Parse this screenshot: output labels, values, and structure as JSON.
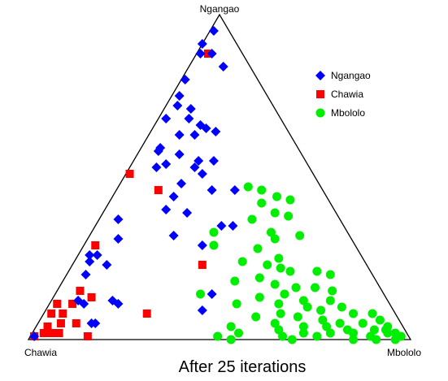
{
  "chart_data": {
    "type": "scatter",
    "subtype": "ternary",
    "caption": "After 25 iterations",
    "vertices": {
      "top": "Ngangao",
      "left": "Chawia",
      "right": "Mbololo"
    },
    "legend": {
      "position": "top-right"
    },
    "series": [
      {
        "name": "Ngangao",
        "color": "#0000ff",
        "marker": "diamond",
        "points": [
          [
            0.95,
            0.01
          ],
          [
            0.91,
            0.0
          ],
          [
            0.88,
            0.01
          ],
          [
            0.88,
            0.04
          ],
          [
            0.84,
            0.09
          ],
          [
            0.8,
            0.01
          ],
          [
            0.75,
            0.02
          ],
          [
            0.72,
            0.03
          ],
          [
            0.71,
            0.07
          ],
          [
            0.68,
            0.02
          ],
          [
            0.68,
            0.08
          ],
          [
            0.66,
            0.12
          ],
          [
            0.65,
            0.14
          ],
          [
            0.64,
            0.17
          ],
          [
            0.63,
            0.08
          ],
          [
            0.63,
            0.12
          ],
          [
            0.59,
            0.05
          ],
          [
            0.58,
            0.05
          ],
          [
            0.57,
            0.11
          ],
          [
            0.55,
            0.17
          ],
          [
            0.55,
            0.21
          ],
          [
            0.54,
            0.09
          ],
          [
            0.53,
            0.07
          ],
          [
            0.53,
            0.17
          ],
          [
            0.51,
            0.2
          ],
          [
            0.48,
            0.16
          ],
          [
            0.46,
            0.31
          ],
          [
            0.46,
            0.25
          ],
          [
            0.44,
            0.16
          ],
          [
            0.4,
            0.16
          ],
          [
            0.39,
            0.22
          ],
          [
            0.37,
            0.05
          ],
          [
            0.35,
            0.33
          ],
          [
            0.35,
            0.36
          ],
          [
            0.32,
            0.22
          ],
          [
            0.29,
            0.31
          ],
          [
            0.31,
            0.08
          ],
          [
            0.26,
            0.03
          ],
          [
            0.26,
            0.05
          ],
          [
            0.24,
            0.04
          ],
          [
            0.23,
            0.09
          ],
          [
            0.2,
            0.05
          ],
          [
            0.14,
            0.41
          ],
          [
            0.12,
            0.16
          ],
          [
            0.11,
            0.18
          ],
          [
            0.11,
            0.09
          ],
          [
            0.12,
            0.07
          ],
          [
            0.09,
            0.41
          ],
          [
            0.05,
            0.15
          ],
          [
            0.05,
            0.14
          ],
          [
            0.01,
            0.01
          ]
        ]
      },
      {
        "name": "Chawia",
        "color": "#ff0000",
        "marker": "square",
        "points": [
          [
            0.88,
            0.03
          ],
          [
            0.51,
            0.01
          ],
          [
            0.46,
            0.11
          ],
          [
            0.29,
            0.03
          ],
          [
            0.23,
            0.34
          ],
          [
            0.15,
            0.06
          ],
          [
            0.13,
            0.1
          ],
          [
            0.08,
            0.27
          ],
          [
            0.11,
            0.06
          ],
          [
            0.11,
            0.02
          ],
          [
            0.08,
            0.02
          ],
          [
            0.05,
            0.06
          ],
          [
            0.08,
            0.05
          ],
          [
            0.05,
            0.1
          ],
          [
            0.04,
            0.03
          ],
          [
            0.02,
            0.03
          ],
          [
            0.02,
            0.07
          ],
          [
            0.01,
            0.01
          ],
          [
            0.01,
            0.15
          ],
          [
            0.02,
            0.05
          ]
        ]
      },
      {
        "name": "Mbololo",
        "color": "#00ee00",
        "marker": "circle",
        "points": [
          [
            0.47,
            0.34
          ],
          [
            0.46,
            0.38
          ],
          [
            0.44,
            0.43
          ],
          [
            0.43,
            0.47
          ],
          [
            0.42,
            0.4
          ],
          [
            0.39,
            0.45
          ],
          [
            0.38,
            0.49
          ],
          [
            0.37,
            0.4
          ],
          [
            0.33,
            0.32
          ],
          [
            0.33,
            0.47
          ],
          [
            0.32,
            0.55
          ],
          [
            0.31,
            0.49
          ],
          [
            0.29,
            0.34
          ],
          [
            0.28,
            0.46
          ],
          [
            0.25,
            0.53
          ],
          [
            0.24,
            0.44
          ],
          [
            0.23,
            0.51
          ],
          [
            0.22,
            0.55
          ],
          [
            0.21,
            0.58
          ],
          [
            0.21,
            0.65
          ],
          [
            0.2,
            0.69
          ],
          [
            0.19,
            0.51
          ],
          [
            0.18,
            0.45
          ],
          [
            0.17,
            0.56
          ],
          [
            0.16,
            0.62
          ],
          [
            0.16,
            0.67
          ],
          [
            0.15,
            0.72
          ],
          [
            0.14,
            0.38
          ],
          [
            0.14,
            0.6
          ],
          [
            0.13,
            0.54
          ],
          [
            0.12,
            0.66
          ],
          [
            0.12,
            0.73
          ],
          [
            0.11,
            0.49
          ],
          [
            0.11,
            0.6
          ],
          [
            0.1,
            0.68
          ],
          [
            0.1,
            0.77
          ],
          [
            0.09,
            0.72
          ],
          [
            0.08,
            0.62
          ],
          [
            0.08,
            0.81
          ],
          [
            0.08,
            0.86
          ],
          [
            0.07,
            0.67
          ],
          [
            0.07,
            0.56
          ],
          [
            0.06,
            0.74
          ],
          [
            0.06,
            0.89
          ],
          [
            0.05,
            0.62
          ],
          [
            0.05,
            0.79
          ],
          [
            0.05,
            0.85
          ],
          [
            0.04,
            0.92
          ],
          [
            0.04,
            0.51
          ],
          [
            0.04,
            0.7
          ],
          [
            0.04,
            0.76
          ],
          [
            0.03,
            0.64
          ],
          [
            0.03,
            0.82
          ],
          [
            0.03,
            0.89
          ],
          [
            0.03,
            0.92
          ],
          [
            0.02,
            0.54
          ],
          [
            0.02,
            0.71
          ],
          [
            0.02,
            0.78
          ],
          [
            0.02,
            0.84
          ],
          [
            0.02,
            0.93
          ],
          [
            0.02,
            0.95
          ],
          [
            0.01,
            0.49
          ],
          [
            0.01,
            0.66
          ],
          [
            0.01,
            0.75
          ],
          [
            0.01,
            0.89
          ],
          [
            0.01,
            0.97
          ],
          [
            0.0,
            0.53
          ],
          [
            0.0,
            0.69
          ],
          [
            0.0,
            0.85
          ],
          [
            0.0,
            0.91
          ],
          [
            0.0,
            0.96
          ]
        ]
      }
    ]
  }
}
